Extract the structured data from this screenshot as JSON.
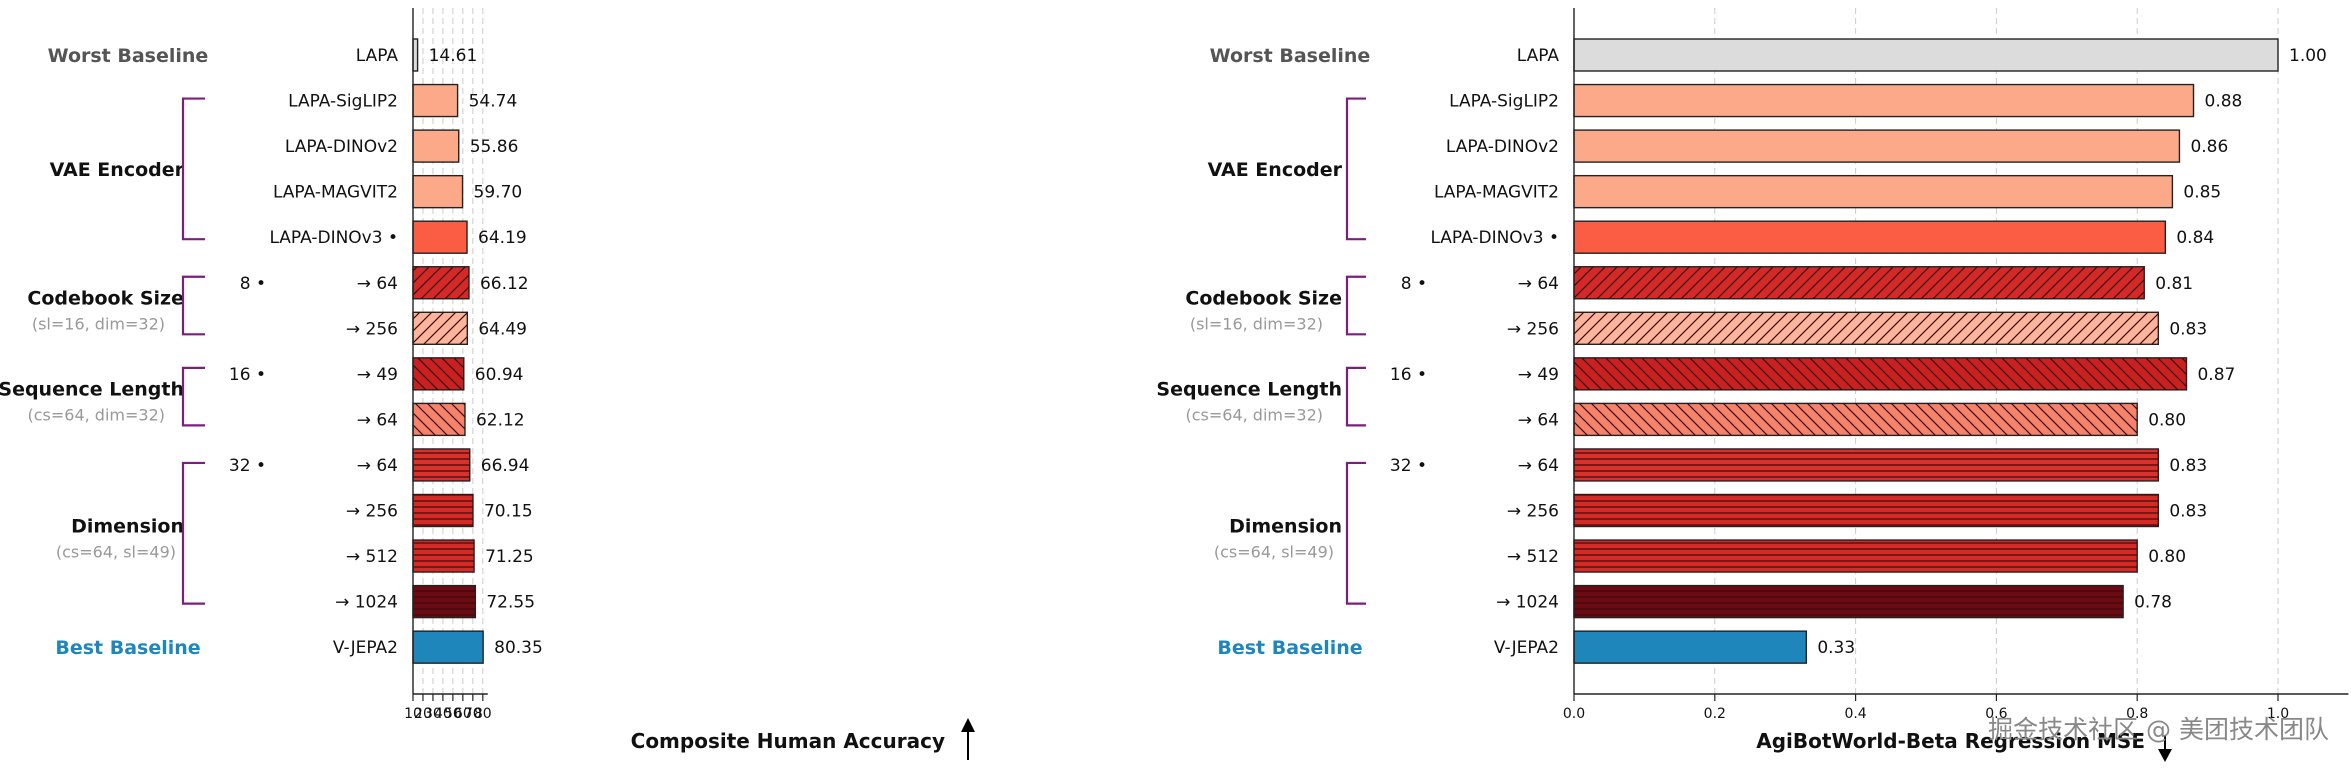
{
  "chart_data": [
    {
      "type": "bar",
      "orientation": "horizontal",
      "xlabel": "Composite Human Accuracy",
      "xlabel_arrow": "up",
      "xlim": [
        10,
        85
      ],
      "xticks": [
        10,
        20,
        30,
        40,
        50,
        60,
        70,
        80
      ],
      "xtick_labels": [
        "10",
        "20",
        "30",
        "40",
        "50",
        "60",
        "70",
        "80"
      ],
      "value_format": 2,
      "grid": "vertical-dashed",
      "categories": [
        "LAPA",
        "LAPA-SigLIP2",
        "LAPA-DINOv2",
        "LAPA-MAGVIT2",
        "LAPA-DINOv3 •",
        "→ 64",
        "→ 256",
        "→ 49",
        "→ 64",
        "→ 64",
        "→ 256",
        "→ 512",
        "→ 1024",
        "V-JEPA2"
      ],
      "values": [
        14.61,
        54.74,
        55.86,
        59.7,
        64.19,
        66.12,
        64.49,
        60.94,
        62.12,
        66.94,
        70.15,
        71.25,
        72.55,
        80.35
      ]
    },
    {
      "type": "bar",
      "orientation": "horizontal",
      "xlabel": "AgiBotWorld-Beta Regression MSE",
      "xlabel_arrow": "down",
      "xlim": [
        0,
        1.1
      ],
      "xticks": [
        0,
        0.2,
        0.4,
        0.6,
        0.8,
        1.0
      ],
      "xtick_labels": [
        "0.0",
        "0.2",
        "0.4",
        "0.6",
        "0.8",
        "1.0"
      ],
      "value_format": 2,
      "grid": "vertical-dashed",
      "categories": [
        "LAPA",
        "LAPA-SigLIP2",
        "LAPA-DINOv2",
        "LAPA-MAGVIT2",
        "LAPA-DINOv3 •",
        "→ 64",
        "→ 256",
        "→ 49",
        "→ 64",
        "→ 64",
        "→ 256",
        "→ 512",
        "→ 1024",
        "V-JEPA2"
      ],
      "values": [
        1.0,
        0.88,
        0.86,
        0.85,
        0.84,
        0.81,
        0.83,
        0.87,
        0.8,
        0.83,
        0.83,
        0.8,
        0.78,
        0.33
      ]
    }
  ],
  "bar_styles": [
    {
      "fill": "#dcdcdc",
      "hatch": "none"
    },
    {
      "fill": "#fca98a",
      "hatch": "none"
    },
    {
      "fill": "#fca98a",
      "hatch": "none"
    },
    {
      "fill": "#fca98a",
      "hatch": "none"
    },
    {
      "fill": "#fa5d43",
      "hatch": "none"
    },
    {
      "fill": "#d42a27",
      "hatch": "forward"
    },
    {
      "fill": "#fcb49a",
      "hatch": "forward"
    },
    {
      "fill": "#ca2020",
      "hatch": "back"
    },
    {
      "fill": "#f5836a",
      "hatch": "back"
    },
    {
      "fill": "#d9312c",
      "hatch": "horizontal"
    },
    {
      "fill": "#d42b26",
      "hatch": "horizontal"
    },
    {
      "fill": "#d42b26",
      "hatch": "horizontal"
    },
    {
      "fill": "#6b0a13",
      "hatch": "horizontal"
    },
    {
      "fill": "#1f86bb",
      "hatch": "none"
    }
  ],
  "group_labels": [
    {
      "title": "Worst Baseline",
      "subtitle": "",
      "color": "#555555",
      "rows": [
        0,
        0
      ],
      "bracket": false
    },
    {
      "title": "VAE Encoder",
      "subtitle": "",
      "color": "#111111",
      "rows": [
        1,
        4
      ],
      "bracket": true
    },
    {
      "title": "Codebook Size",
      "subtitle": "(sl=16, dim=32)",
      "color": "#111111",
      "rows": [
        5,
        6
      ],
      "bracket": true
    },
    {
      "title": "Sequence Length",
      "subtitle": "(cs=64, dim=32)",
      "color": "#111111",
      "rows": [
        7,
        8
      ],
      "bracket": true
    },
    {
      "title": "Dimension",
      "subtitle": "(cs=64, sl=49)",
      "color": "#111111",
      "rows": [
        9,
        12
      ],
      "bracket": true
    },
    {
      "title": "Best Baseline",
      "subtitle": "",
      "color": "#1f86bb",
      "rows": [
        13,
        13
      ],
      "bracket": false
    }
  ],
  "base_markers": [
    {
      "row": 5,
      "label": "8 •"
    },
    {
      "row": 7,
      "label": "16 •"
    },
    {
      "row": 9,
      "label": "32 •"
    }
  ],
  "colors": {
    "bracket": "#7b1f7e",
    "grid": "#cccccc",
    "text": "#111111",
    "subtitle": "#999999"
  },
  "watermark": "掘金技术社区 @ 美团技术团队"
}
